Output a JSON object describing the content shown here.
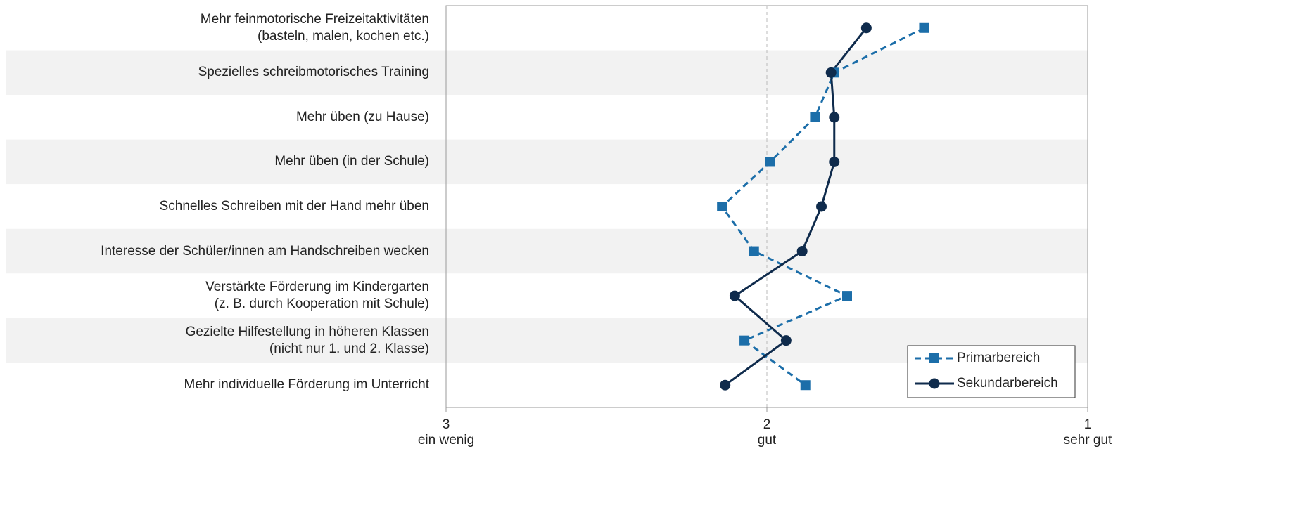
{
  "chart_data": {
    "type": "line",
    "orientation": "horizontal",
    "categories": [
      "Mehr feinmotorische Freizeitaktivitäten\n(basteln, malen, kochen etc.)",
      "Spezielles schreibmotorisches Training",
      "Mehr üben (zu Hause)",
      "Mehr üben (in der Schule)",
      "Schnelles Schreiben mit der Hand mehr üben",
      "Interesse der Schüler/innen am Handschreiben wecken",
      "Verstärkte Förderung im Kindergarten\n(z. B. durch Kooperation mit Schule)",
      "Gezielte Hilfestellung in höheren Klassen\n(nicht nur 1. und 2. Klasse)",
      "Mehr individuelle Förderung im Unterricht"
    ],
    "series": [
      {
        "name": "Primarbereich",
        "color": "#1c6ea9",
        "marker": "square",
        "dash": true,
        "values": [
          1.51,
          1.79,
          1.85,
          1.99,
          2.14,
          2.04,
          1.75,
          2.07,
          1.88
        ]
      },
      {
        "name": "Sekundarbereich",
        "color": "#0f2b4c",
        "marker": "circle",
        "dash": false,
        "values": [
          1.69,
          1.8,
          1.79,
          1.79,
          1.83,
          1.89,
          2.1,
          1.94,
          2.13
        ]
      }
    ],
    "xlim": [
      3,
      1
    ],
    "xticks": [
      3,
      2,
      1
    ],
    "xtick_sublabels": [
      "ein wenig",
      "gut",
      "sehr gut"
    ],
    "vline": 2,
    "legend": "lower right"
  }
}
